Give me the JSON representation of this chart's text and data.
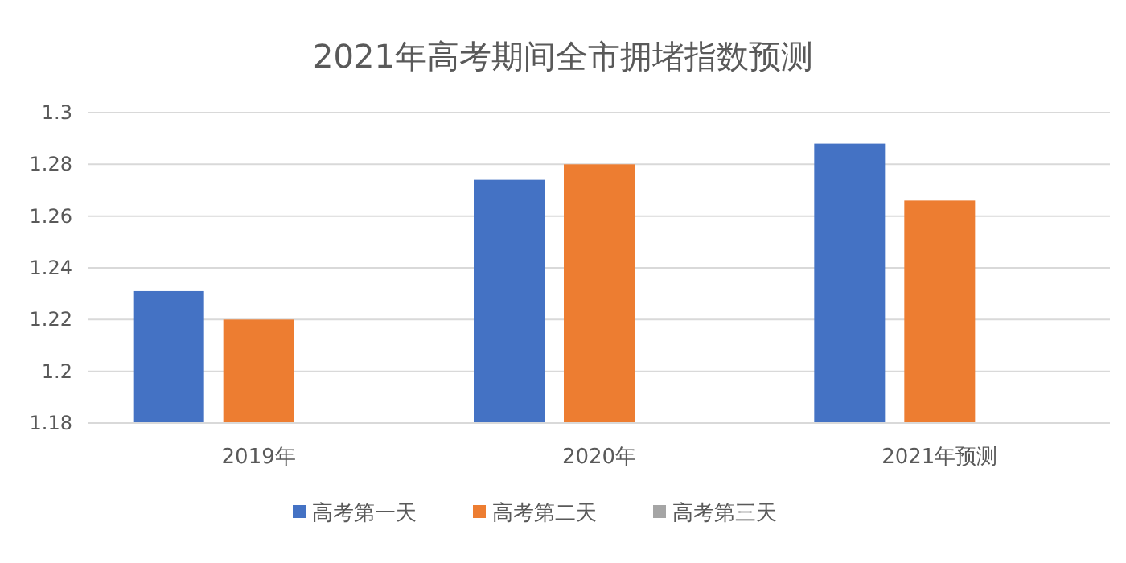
{
  "chart_data": {
    "type": "bar",
    "title": "2021年高考期间全市拥堵指数预测",
    "categories": [
      "2019年",
      "2020年",
      "2021年预测"
    ],
    "series": [
      {
        "name": "高考第一天",
        "color": "#4472c4",
        "values": [
          1.231,
          1.274,
          1.288
        ]
      },
      {
        "name": "高考第二天",
        "color": "#ed7d31",
        "values": [
          1.22,
          1.28,
          1.266
        ]
      },
      {
        "name": "高考第三天",
        "color": "#a5a5a5",
        "values": [
          null,
          null,
          null
        ]
      }
    ],
    "ylim": [
      1.18,
      1.3
    ],
    "yticks": [
      1.18,
      1.2,
      1.22,
      1.24,
      1.26,
      1.28,
      1.3
    ],
    "grid": "y",
    "legend": "bottom"
  }
}
